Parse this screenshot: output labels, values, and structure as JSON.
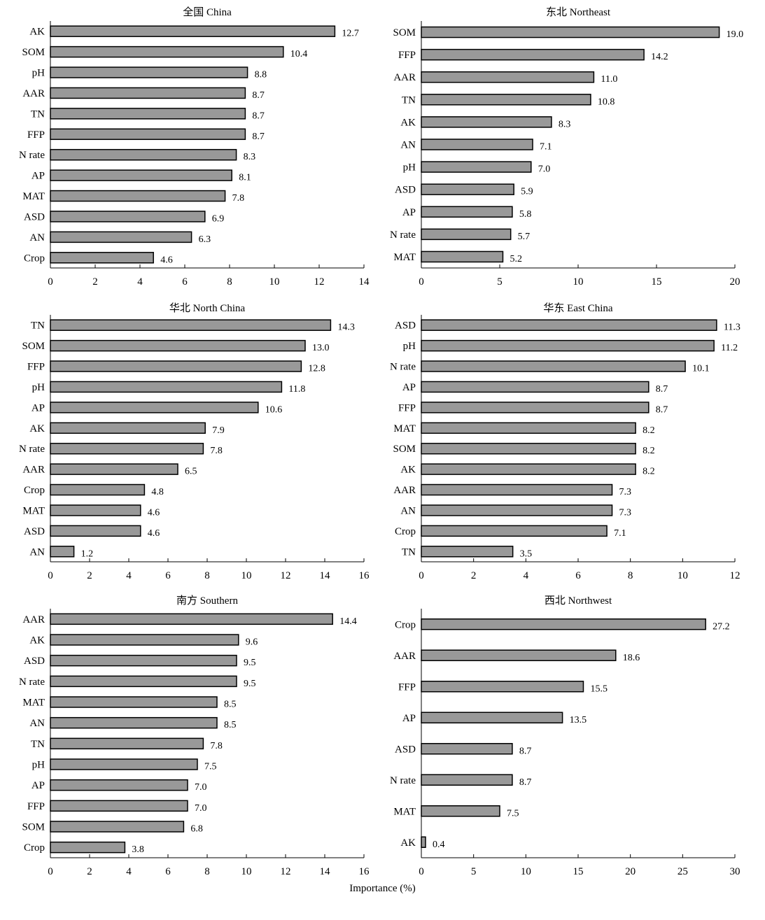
{
  "xlabel": "Importance (%)",
  "colors": {
    "bar_fill": "#999999",
    "bar_stroke": "#000000",
    "axis": "#000000"
  },
  "chart_data": [
    {
      "type": "bar",
      "orientation": "horizontal",
      "title": "全国 China",
      "categories": [
        "AK",
        "SOM",
        "pH",
        "AAR",
        "TN",
        "FFP",
        "N rate",
        "AP",
        "MAT",
        "ASD",
        "AN",
        "Crop"
      ],
      "values": [
        12.7,
        10.4,
        8.8,
        8.7,
        8.7,
        8.7,
        8.3,
        8.1,
        7.8,
        6.9,
        6.3,
        4.6
      ],
      "labels": [
        "12.7",
        "10.4",
        "8.8",
        "8.7",
        "8.7",
        "8.7",
        "8.3",
        "8.1",
        "7.8",
        "6.9",
        "6.3",
        "4.6"
      ],
      "xlim": [
        0,
        14
      ],
      "ticks": [
        0,
        2,
        4,
        6,
        8,
        10,
        12,
        14
      ],
      "grid": false
    },
    {
      "type": "bar",
      "orientation": "horizontal",
      "title": "东北 Northeast",
      "categories": [
        "SOM",
        "FFP",
        "AAR",
        "TN",
        "AK",
        "AN",
        "pH",
        "ASD",
        "AP",
        "N rate",
        "MAT"
      ],
      "values": [
        19.0,
        14.2,
        11.0,
        10.8,
        8.3,
        7.1,
        7.0,
        5.9,
        5.8,
        5.7,
        5.2
      ],
      "labels": [
        "19.0",
        "14.2",
        "11.0",
        "10.8",
        "8.3",
        "7.1",
        "7.0",
        "5.9",
        "5.8",
        "5.7",
        "5.2"
      ],
      "xlim": [
        0,
        20
      ],
      "ticks": [
        0,
        5,
        10,
        15,
        20
      ],
      "grid": false
    },
    {
      "type": "bar",
      "orientation": "horizontal",
      "title": "华北 North China",
      "categories": [
        "TN",
        "SOM",
        "FFP",
        "pH",
        "AP",
        "AK",
        "N rate",
        "AAR",
        "Crop",
        "MAT",
        "ASD",
        "AN"
      ],
      "values": [
        14.3,
        13.0,
        12.8,
        11.8,
        10.6,
        7.9,
        7.8,
        6.5,
        4.8,
        4.6,
        4.6,
        1.2
      ],
      "labels": [
        "14.3",
        "13.0",
        "12.8",
        "11.8",
        "10.6",
        "7.9",
        "7.8",
        "6.5",
        "4.8",
        "4.6",
        "4.6",
        "1.2"
      ],
      "xlim": [
        0,
        16
      ],
      "ticks": [
        0,
        2,
        4,
        6,
        8,
        10,
        12,
        14,
        16
      ],
      "grid": false
    },
    {
      "type": "bar",
      "orientation": "horizontal",
      "title": "华东 East China",
      "categories": [
        "ASD",
        "pH",
        "N rate",
        "AP",
        "FFP",
        "MAT",
        "SOM",
        "AK",
        "AAR",
        "AN",
        "Crop",
        "TN"
      ],
      "values": [
        11.3,
        11.2,
        10.1,
        8.7,
        8.7,
        8.2,
        8.2,
        8.2,
        7.3,
        7.3,
        7.1,
        3.5
      ],
      "labels": [
        "11.3",
        "11.2",
        "10.1",
        "8.7",
        "8.7",
        "8.2",
        "8.2",
        "8.2",
        "7.3",
        "7.3",
        "7.1",
        "3.5"
      ],
      "xlim": [
        0,
        12
      ],
      "ticks": [
        0,
        2,
        4,
        6,
        8,
        10,
        12
      ],
      "grid": false
    },
    {
      "type": "bar",
      "orientation": "horizontal",
      "title": "南方 Southern",
      "categories": [
        "AAR",
        "AK",
        "ASD",
        "N rate",
        "MAT",
        "AN",
        "TN",
        "pH",
        "AP",
        "FFP",
        "SOM",
        "Crop"
      ],
      "values": [
        14.4,
        9.6,
        9.5,
        9.5,
        8.5,
        8.5,
        7.8,
        7.5,
        7.0,
        7.0,
        6.8,
        3.8
      ],
      "labels": [
        "14.4",
        "9.6",
        "9.5",
        "9.5",
        "8.5",
        "8.5",
        "7.8",
        "7.5",
        "7.0",
        "7.0",
        "6.8",
        "3.8"
      ],
      "xlim": [
        0,
        16
      ],
      "ticks": [
        0,
        2,
        4,
        6,
        8,
        10,
        12,
        14,
        16
      ],
      "grid": false
    },
    {
      "type": "bar",
      "orientation": "horizontal",
      "title": "西北 Northwest",
      "categories": [
        "Crop",
        "AAR",
        "FFP",
        "AP",
        "ASD",
        "N rate",
        "MAT",
        "AK"
      ],
      "values": [
        27.2,
        18.6,
        15.5,
        13.5,
        8.7,
        8.7,
        7.5,
        0.4
      ],
      "labels": [
        "27.2",
        "18.6",
        "15.5",
        "13.5",
        "8.7",
        "8.7",
        "7.5",
        "0.4"
      ],
      "xlim": [
        0,
        30
      ],
      "ticks": [
        0,
        5,
        10,
        15,
        20,
        25,
        30
      ],
      "grid": false
    }
  ]
}
